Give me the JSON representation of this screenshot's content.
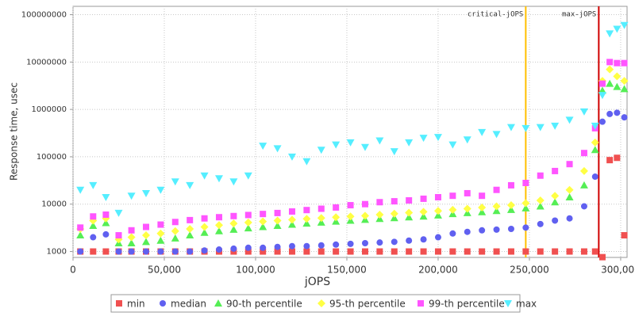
{
  "chart_data": {
    "type": "scatter",
    "xlabel": "jOPS",
    "ylabel": "Response time, usec",
    "log_y": true,
    "grid": true,
    "legend": "bottom",
    "xlim": [
      0,
      303500
    ],
    "ylim": [
      750,
      150000000
    ],
    "xticks": [
      {
        "value": 0,
        "label": "0"
      },
      {
        "value": 50000,
        "label": "50,000"
      },
      {
        "value": 100000,
        "label": "100,000"
      },
      {
        "value": 150000,
        "label": "150,000"
      },
      {
        "value": 200000,
        "label": "200,000"
      },
      {
        "value": 250000,
        "label": "250,000"
      },
      {
        "value": 300000,
        "label": "300,000"
      }
    ],
    "yticks": [
      1000,
      10000,
      100000,
      1000000,
      10000000,
      100000000
    ],
    "annotations": [
      {
        "label": "critical-jOPS",
        "x": 248000,
        "color": "#ffc000"
      },
      {
        "label": "max-jOPS",
        "x": 288000,
        "color": "#d00000"
      }
    ],
    "x": [
      4000,
      11000,
      18000,
      25000,
      32000,
      40000,
      48000,
      56000,
      64000,
      72000,
      80000,
      88000,
      96000,
      104000,
      112000,
      120000,
      128000,
      136000,
      144000,
      152000,
      160000,
      168000,
      176000,
      184000,
      192000,
      200000,
      208000,
      216000,
      224000,
      232000,
      240000,
      248000,
      256000,
      264000,
      272000,
      280000,
      286000,
      290000,
      294000,
      298000,
      302000
    ],
    "series": [
      {
        "name": "min",
        "color": "#f05050",
        "marker": "square",
        "values": [
          1000,
          1000,
          1000,
          1000,
          1000,
          1000,
          1000,
          1000,
          1000,
          1000,
          1000,
          1000,
          1000,
          1000,
          1000,
          1000,
          1000,
          1000,
          1000,
          1000,
          1000,
          1000,
          1000,
          1000,
          1000,
          1000,
          1000,
          1000,
          1000,
          1000,
          1000,
          1000,
          1000,
          1000,
          1000,
          1000,
          1000,
          760,
          85000,
          95000,
          2200
        ]
      },
      {
        "name": "median",
        "color": "#6060f0",
        "marker": "circle",
        "values": [
          1000,
          2000,
          2300,
          1000,
          1000,
          1000,
          1000,
          1000,
          1000,
          1050,
          1100,
          1150,
          1200,
          1200,
          1250,
          1300,
          1300,
          1350,
          1400,
          1450,
          1500,
          1550,
          1600,
          1700,
          1800,
          2000,
          2400,
          2600,
          2800,
          2900,
          3000,
          3200,
          3800,
          4500,
          5000,
          9000,
          38000,
          550000,
          800000,
          850000,
          680000
        ]
      },
      {
        "name": "90-th percentile",
        "color": "#55ee55",
        "marker": "triangle",
        "values": [
          2200,
          3500,
          4000,
          1500,
          1500,
          1600,
          1700,
          1900,
          2200,
          2500,
          2700,
          2900,
          3100,
          3300,
          3500,
          3700,
          3900,
          4100,
          4300,
          4500,
          4700,
          4900,
          5100,
          5300,
          5500,
          5800,
          6200,
          6500,
          6800,
          7200,
          7600,
          8200,
          9000,
          11000,
          14000,
          25000,
          140000,
          2500000,
          3500000,
          3000000,
          2700000
        ]
      },
      {
        "name": "95-th percentile",
        "color": "#ffff44",
        "marker": "diamond",
        "values": [
          3000,
          4500,
          5000,
          1800,
          2000,
          2200,
          2400,
          2700,
          3000,
          3300,
          3600,
          3900,
          4100,
          4300,
          4500,
          4700,
          4900,
          5100,
          5300,
          5500,
          5700,
          6000,
          6300,
          6600,
          6900,
          7200,
          7600,
          8000,
          8500,
          9000,
          9500,
          10500,
          12000,
          15000,
          20000,
          50000,
          200000,
          4000000,
          7000000,
          5000000,
          4000000
        ]
      },
      {
        "name": "99-th percentile",
        "color": "#ff55ff",
        "marker": "square",
        "values": [
          3200,
          5500,
          6000,
          2200,
          2800,
          3300,
          3700,
          4200,
          4600,
          5000,
          5300,
          5600,
          5900,
          6200,
          6500,
          7000,
          7500,
          8000,
          8500,
          9500,
          10000,
          11000,
          11500,
          12000,
          13000,
          14000,
          15000,
          17000,
          15000,
          20000,
          25000,
          28000,
          40000,
          50000,
          70000,
          120000,
          400000,
          3500000,
          10000000,
          9500000,
          9500000
        ]
      },
      {
        "name": "max",
        "color": "#55eeff",
        "marker": "down-triangle",
        "values": [
          20000,
          25000,
          14000,
          6500,
          15000,
          17000,
          20000,
          30000,
          25000,
          40000,
          35000,
          30000,
          40000,
          170000,
          150000,
          100000,
          80000,
          140000,
          180000,
          200000,
          160000,
          220000,
          130000,
          200000,
          250000,
          260000,
          180000,
          230000,
          330000,
          300000,
          420000,
          400000,
          420000,
          450000,
          600000,
          900000,
          450000,
          2000000,
          40000000,
          50000000,
          60000000
        ]
      }
    ]
  }
}
